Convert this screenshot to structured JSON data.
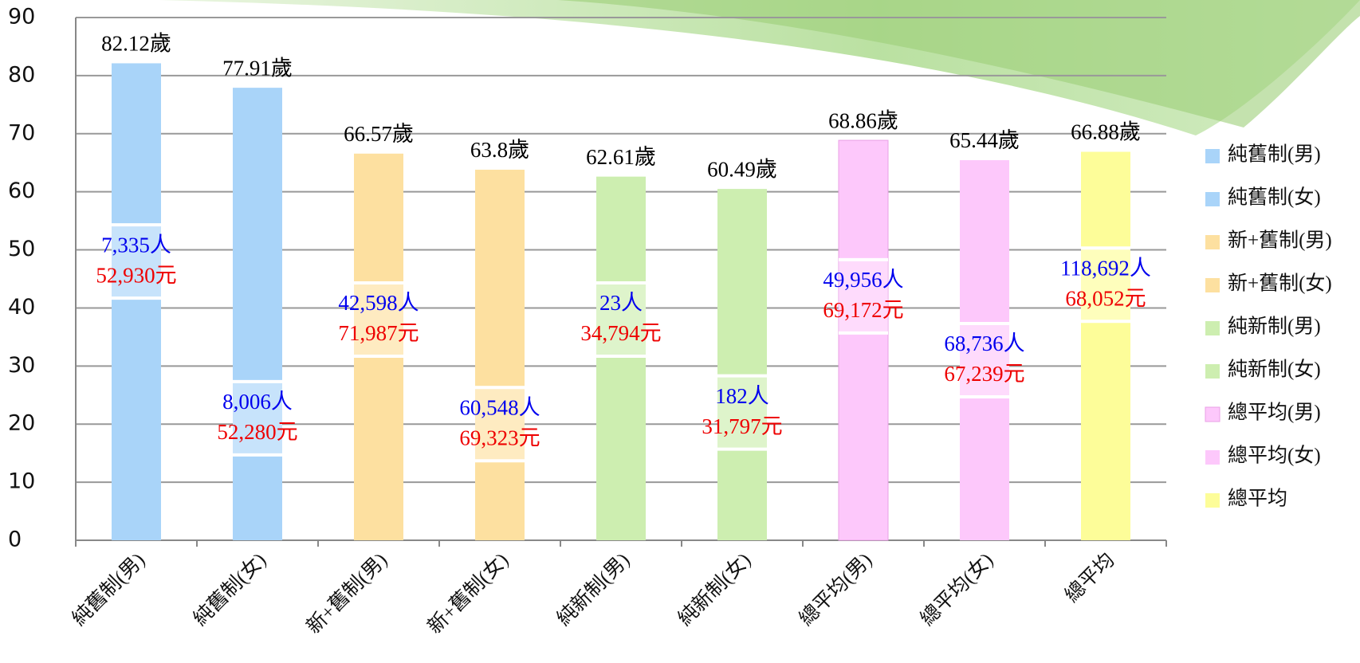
{
  "chart_data": {
    "type": "bar",
    "categories": [
      "純舊制(男)",
      "純舊制(女)",
      "新+舊制(男)",
      "新+舊制(女)",
      "純新制(男)",
      "純新制(女)",
      "總平均(男)",
      "總平均(女)",
      "總平均"
    ],
    "values": [
      82.12,
      77.91,
      66.57,
      63.8,
      62.61,
      60.49,
      68.86,
      65.44,
      66.88
    ],
    "value_labels": [
      "82.12歲",
      "77.91歲",
      "66.57歲",
      "63.8歲",
      "62.61歲",
      "60.49歲",
      "68.86歲",
      "65.44歲",
      "66.88歲"
    ],
    "counts": [
      "7,335人",
      "8,006人",
      "42,598人",
      "60,548人",
      "23人",
      "182人",
      "49,956人",
      "68,736人",
      "118,692人"
    ],
    "salaries": [
      "52,930元",
      "52,280元",
      "71,987元",
      "69,323元",
      "34,794元",
      "31,797元",
      "69,172元",
      "67,239元",
      "68,052元"
    ],
    "colors": [
      "#a9d4f9",
      "#a9d4f9",
      "#fde0a0",
      "#fde0a0",
      "#cdeeb0",
      "#cdeeb0",
      "#fdc8fb",
      "#fdc8fb",
      "#fdfd99"
    ],
    "ylim": [
      0,
      90
    ],
    "yticks": [
      0,
      10,
      20,
      30,
      40,
      50,
      60,
      70,
      80,
      90
    ],
    "grid": true,
    "legend": "right"
  }
}
